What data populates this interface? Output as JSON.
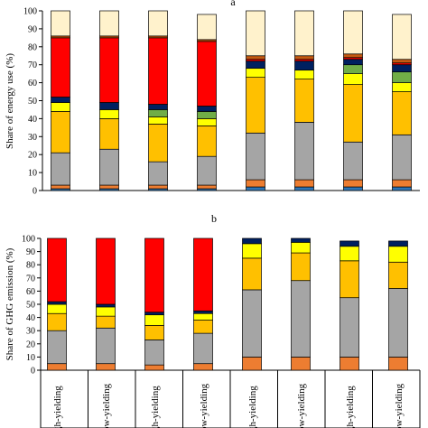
{
  "chart_data": [
    {
      "type": "bar",
      "stacked": true,
      "panel_label": "a",
      "ylabel": "Share of energy use (%)",
      "ylim": [
        0,
        100
      ],
      "yticks": [
        0,
        10,
        20,
        30,
        40,
        50,
        60,
        70,
        80,
        90,
        100
      ],
      "categories": [
        "",
        "",
        "",
        "",
        "",
        "",
        "",
        ""
      ],
      "series": [
        {
          "color": "#2e75b6",
          "values": [
            1,
            1,
            1,
            1,
            2,
            2,
            2,
            2
          ]
        },
        {
          "color": "#ed7d31",
          "values": [
            2,
            2,
            2,
            2,
            4,
            4,
            4,
            4
          ]
        },
        {
          "color": "#a5a5a5",
          "values": [
            18,
            20,
            13,
            16,
            26,
            32,
            21,
            25
          ]
        },
        {
          "color": "#ffc000",
          "values": [
            23,
            17,
            21,
            17,
            31,
            24,
            32,
            24
          ]
        },
        {
          "color": "#ffff00",
          "values": [
            5,
            5,
            4,
            4,
            5,
            5,
            6,
            5
          ]
        },
        {
          "color": "#70ad47",
          "values": [
            0,
            0,
            4,
            4,
            0,
            0,
            5,
            6
          ]
        },
        {
          "color": "#002060",
          "values": [
            3,
            4,
            3,
            3,
            4,
            5,
            3,
            4
          ]
        },
        {
          "color": "#ff0000",
          "values": [
            33,
            36,
            37,
            36,
            1,
            1,
            1,
            1
          ]
        },
        {
          "color": "#c55a11",
          "values": [
            1,
            1,
            1,
            1,
            2,
            2,
            2,
            2
          ]
        },
        {
          "color": "#fff2cc",
          "values": [
            14,
            14,
            14,
            14,
            25,
            25,
            24,
            25
          ]
        }
      ]
    },
    {
      "type": "bar",
      "stacked": true,
      "panel_label": "b",
      "ylabel": "Share of GHG emission (%)",
      "ylim": [
        0,
        100
      ],
      "yticks": [
        0,
        10,
        20,
        30,
        40,
        50,
        60,
        70,
        80,
        90,
        100
      ],
      "categories": [
        "gh-yielding",
        "ow-yielding",
        "gh-yielding",
        "ow-yielding",
        "gh-yielding",
        "ow-yielding",
        "gh-yielding",
        "ow-yielding"
      ],
      "series": [
        {
          "color": "#ed7d31",
          "values": [
            5,
            5,
            4,
            5,
            10,
            10,
            10,
            10
          ]
        },
        {
          "color": "#a5a5a5",
          "values": [
            25,
            27,
            19,
            23,
            51,
            58,
            45,
            52
          ]
        },
        {
          "color": "#ffc000",
          "values": [
            13,
            9,
            11,
            10,
            24,
            21,
            28,
            20
          ]
        },
        {
          "color": "#ffff00",
          "values": [
            7,
            7,
            8,
            5,
            11,
            8,
            11,
            12
          ]
        },
        {
          "color": "#002060",
          "values": [
            2,
            2,
            2,
            2,
            4,
            3,
            4,
            4
          ]
        },
        {
          "color": "#ff0000",
          "values": [
            48,
            50,
            56,
            55,
            0,
            0,
            0,
            0
          ]
        }
      ]
    }
  ]
}
